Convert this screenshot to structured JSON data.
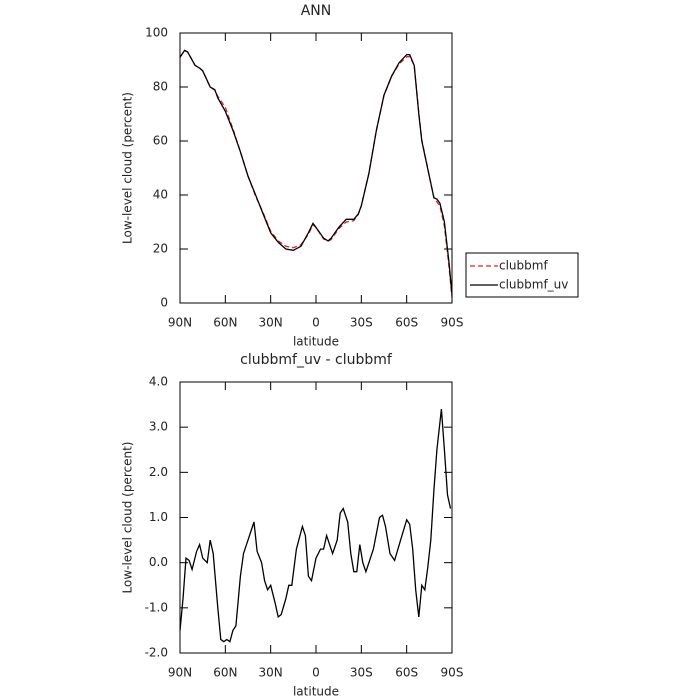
{
  "chart_data": [
    {
      "type": "line",
      "title": "ANN",
      "x_label": "latitude",
      "y_label": "Low-level cloud (percent)",
      "x": [
        90,
        87,
        85,
        80,
        77,
        75,
        70,
        67,
        65,
        60,
        55,
        50,
        45,
        40,
        35,
        30,
        25,
        20,
        15,
        10,
        5,
        2,
        0,
        -5,
        -8,
        -10,
        -15,
        -20,
        -25,
        -28,
        -30,
        -35,
        -40,
        -45,
        -50,
        -55,
        -60,
        -62,
        -65,
        -68,
        -70,
        -75,
        -78,
        -80,
        -82,
        -85,
        -88,
        -90
      ],
      "series": [
        {
          "name": "clubbmf",
          "color": "#e02020",
          "dash": true,
          "values": [
            91,
            93.5,
            93,
            88,
            87,
            86,
            80,
            78.8,
            76.5,
            72.5,
            64.5,
            56,
            47,
            39.6,
            33.5,
            26.5,
            23,
            21,
            20.5,
            21.5,
            25.5,
            29,
            28,
            23.7,
            23,
            23.5,
            27.5,
            30,
            30.5,
            32.8,
            36,
            48,
            64,
            77,
            84,
            88.6,
            91.2,
            91.3,
            88,
            70.5,
            60.5,
            47,
            39,
            37.5,
            36,
            28.5,
            13.5,
            2
          ]
        },
        {
          "name": "clubbmf_uv",
          "color": "#000000",
          "dash": false,
          "values": [
            91,
            93.5,
            93,
            88,
            87,
            86,
            80,
            79,
            76,
            71,
            64,
            56,
            47,
            40,
            33,
            26,
            22.5,
            20,
            19.5,
            21,
            26,
            29.5,
            28,
            24,
            23,
            24,
            28,
            31,
            31,
            33,
            36,
            48,
            64,
            77,
            84,
            89,
            92,
            92,
            88,
            70,
            60,
            47,
            39,
            38.5,
            37,
            30,
            15,
            3
          ]
        }
      ],
      "xlim": [
        90,
        -90
      ],
      "xticks": [
        {
          "value": 90,
          "label": "90N"
        },
        {
          "value": 60,
          "label": "60N"
        },
        {
          "value": 30,
          "label": "30N"
        },
        0,
        {
          "value": -30,
          "label": "30S"
        },
        {
          "value": -60,
          "label": "60S"
        },
        {
          "value": -90,
          "label": "90S"
        }
      ],
      "ylim": [
        0,
        100
      ],
      "yticks": [
        0,
        20,
        40,
        60,
        80,
        100
      ],
      "legend": "outside-right"
    },
    {
      "type": "line",
      "title": "clubbmf_uv - clubbmf",
      "x_label": "latitude",
      "y_label": "Low-level cloud (percent)",
      "x": [
        90,
        88,
        86,
        84,
        82,
        79,
        77,
        75,
        72,
        70,
        68,
        65,
        63,
        61,
        59,
        57,
        55,
        53,
        50,
        48,
        45,
        41,
        39,
        36,
        34,
        32,
        30,
        27,
        25,
        23,
        20,
        18,
        16,
        13,
        9,
        7,
        5,
        3,
        0,
        -3,
        -5,
        -7,
        -9,
        -11,
        -14,
        -16,
        -18,
        -21,
        -23,
        -25,
        -27,
        -29,
        -31,
        -33,
        -35,
        -38,
        -42,
        -44,
        -46,
        -49,
        -52,
        -56,
        -60,
        -62,
        -64,
        -66,
        -68,
        -70,
        -72,
        -74,
        -76,
        -78,
        -80,
        -83,
        -85,
        -87,
        -89
      ],
      "series": [
        {
          "name": "clubbmf_uv - clubbmf",
          "color": "#000000",
          "dash": false,
          "values": [
            -1.5,
            -0.8,
            0.1,
            0.05,
            -0.15,
            0.25,
            0.4,
            0.1,
            0.0,
            0.5,
            0.2,
            -1.0,
            -1.7,
            -1.75,
            -1.7,
            -1.75,
            -1.5,
            -1.4,
            -0.3,
            0.2,
            0.5,
            0.9,
            0.25,
            0.0,
            -0.4,
            -0.6,
            -0.5,
            -0.9,
            -1.2,
            -1.15,
            -0.8,
            -0.5,
            -0.5,
            0.3,
            0.8,
            0.6,
            -0.3,
            -0.4,
            0.1,
            0.3,
            0.3,
            0.6,
            0.4,
            0.2,
            0.5,
            1.1,
            1.2,
            0.9,
            0.2,
            -0.2,
            -0.2,
            0.4,
            0.0,
            -0.2,
            0.0,
            0.3,
            1.0,
            1.05,
            0.8,
            0.2,
            0.05,
            0.5,
            0.95,
            0.85,
            0.3,
            -0.6,
            -1.2,
            -0.5,
            -0.6,
            -0.1,
            0.5,
            1.6,
            2.5,
            3.4,
            2.5,
            1.5,
            1.2
          ]
        }
      ],
      "xlim": [
        90,
        -90
      ],
      "xticks": [
        {
          "value": 90,
          "label": "90N"
        },
        {
          "value": 60,
          "label": "60N"
        },
        {
          "value": 30,
          "label": "30N"
        },
        0,
        {
          "value": -30,
          "label": "30S"
        },
        {
          "value": -60,
          "label": "60S"
        },
        {
          "value": -90,
          "label": "90S"
        }
      ],
      "ylim": [
        -2,
        4
      ],
      "yticks": [
        {
          "value": -2,
          "label": "-2.0"
        },
        {
          "value": -1,
          "label": "-1.0"
        },
        {
          "value": 0,
          "label": "0.0"
        },
        {
          "value": 1,
          "label": "1.0"
        },
        {
          "value": 2,
          "label": "2.0"
        },
        {
          "value": 3,
          "label": "3.0"
        },
        {
          "value": 4,
          "label": "4.0"
        }
      ]
    }
  ]
}
